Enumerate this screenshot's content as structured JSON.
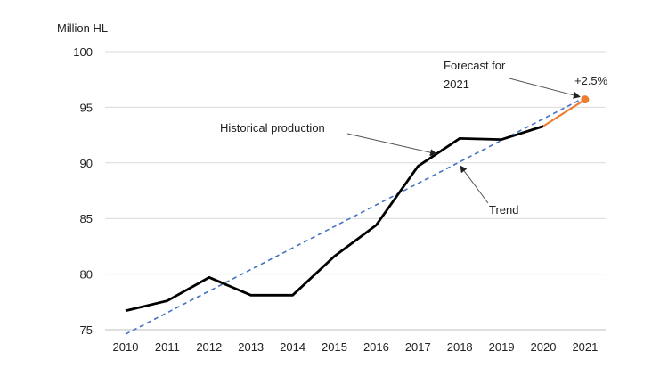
{
  "chart_data": {
    "type": "line",
    "ylabel": "Million HL",
    "xlabel": "",
    "ylim": [
      75,
      100
    ],
    "y_ticks": [
      "75",
      "80",
      "85",
      "90",
      "95",
      "100"
    ],
    "categories": [
      "2010",
      "2011",
      "2012",
      "2013",
      "2014",
      "2015",
      "2016",
      "2017",
      "2018",
      "2019",
      "2020",
      "2021"
    ],
    "grid": true,
    "series": [
      {
        "name": "Historical production",
        "color": "#000000",
        "x": [
          "2010",
          "2011",
          "2012",
          "2013",
          "2014",
          "2015",
          "2016",
          "2017",
          "2018",
          "2019",
          "2020"
        ],
        "values": [
          76.7,
          77.6,
          79.7,
          78.1,
          78.1,
          81.6,
          84.4,
          89.7,
          92.2,
          92.1,
          93.3
        ]
      },
      {
        "name": "Forecast for 2021",
        "color": "#ED7D31",
        "x": [
          "2020",
          "2021"
        ],
        "values": [
          93.3,
          95.7
        ]
      },
      {
        "name": "Trend",
        "color": "#4472C4",
        "x": [
          "2010",
          "2021"
        ],
        "values": [
          74.6,
          95.9
        ]
      }
    ],
    "annotations": {
      "historical": "Historical production",
      "forecast_line1": "Forecast for",
      "forecast_line2": "2021",
      "change": "+2.5%",
      "trend": "Trend"
    }
  }
}
